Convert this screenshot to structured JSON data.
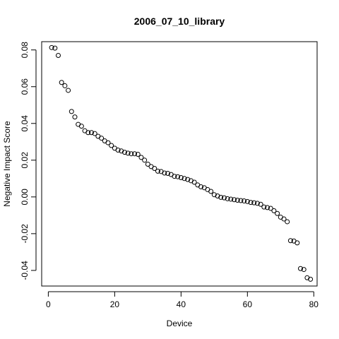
{
  "chart_data": {
    "type": "scatter",
    "title": "2006_07_10_library",
    "xlabel": "Device",
    "ylabel": "Negative Impact Score",
    "xlim": [
      -2,
      81
    ],
    "ylim": [
      -0.0485,
      0.0845
    ],
    "xticks": [
      0,
      20,
      40,
      60,
      80
    ],
    "yticks": [
      -0.04,
      -0.02,
      0.0,
      0.02,
      0.04,
      0.06,
      0.08
    ],
    "xtick_labels": [
      "0",
      "20",
      "40",
      "60",
      "80"
    ],
    "ytick_labels": [
      "-0.04",
      "-0.02",
      "0.00",
      "0.02",
      "0.04",
      "0.06",
      "0.08"
    ],
    "grid": false,
    "marker": "open-circle",
    "x": [
      1,
      2,
      3,
      4,
      5,
      6,
      7,
      8,
      9,
      10,
      11,
      12,
      13,
      14,
      15,
      16,
      17,
      18,
      19,
      20,
      21,
      22,
      23,
      24,
      25,
      26,
      27,
      28,
      29,
      30,
      31,
      32,
      33,
      34,
      35,
      36,
      37,
      38,
      39,
      40,
      41,
      42,
      43,
      44,
      45,
      46,
      47,
      48,
      49,
      50,
      51,
      52,
      53,
      54,
      55,
      56,
      57,
      58,
      59,
      60,
      61,
      62,
      63,
      64,
      65,
      66,
      67,
      68,
      69,
      70,
      71,
      72,
      73,
      74,
      75,
      76,
      77,
      78,
      79
    ],
    "y": [
      0.0813,
      0.081,
      0.077,
      0.0623,
      0.0605,
      0.058,
      0.0465,
      0.0435,
      0.0395,
      0.0385,
      0.036,
      0.035,
      0.035,
      0.0345,
      0.033,
      0.032,
      0.0305,
      0.0295,
      0.028,
      0.0265,
      0.0255,
      0.025,
      0.0243,
      0.0238,
      0.0235,
      0.0235,
      0.0232,
      0.0215,
      0.02,
      0.0178,
      0.0165,
      0.0155,
      0.014,
      0.0138,
      0.013,
      0.0128,
      0.0122,
      0.0112,
      0.011,
      0.0105,
      0.01,
      0.0095,
      0.0088,
      0.008,
      0.0065,
      0.0055,
      0.005,
      0.004,
      0.003,
      0.0012,
      0.0005,
      -0.0002,
      -0.0005,
      -0.001,
      -0.0012,
      -0.0015,
      -0.0018,
      -0.002,
      -0.0022,
      -0.0025,
      -0.003,
      -0.0032,
      -0.0035,
      -0.004,
      -0.0055,
      -0.0058,
      -0.0062,
      -0.0075,
      -0.009,
      -0.011,
      -0.012,
      -0.0135,
      -0.0238,
      -0.024,
      -0.025,
      -0.039,
      -0.0395,
      -0.044,
      -0.0448
    ]
  }
}
